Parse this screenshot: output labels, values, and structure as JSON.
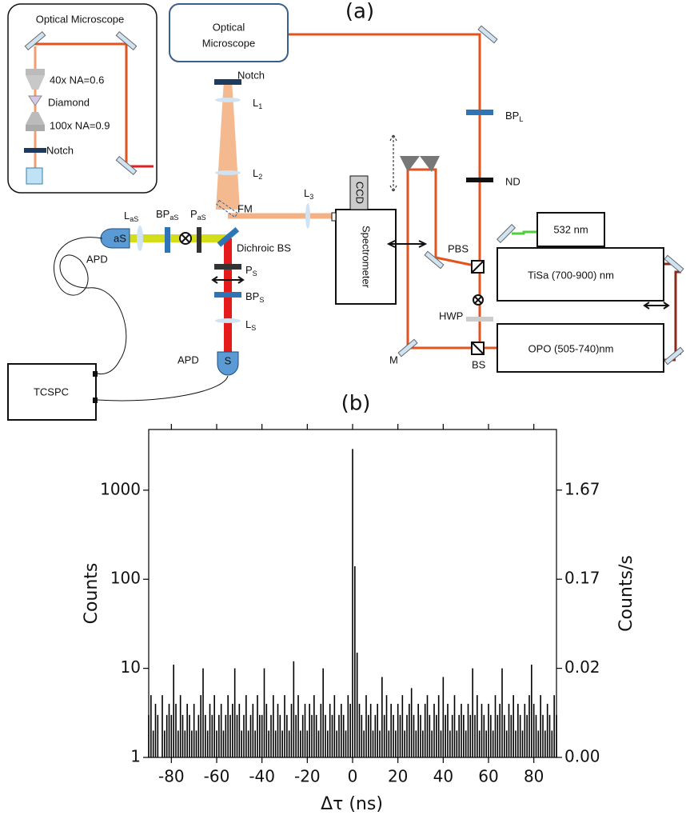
{
  "diagram": {
    "label": "(a)",
    "inset": {
      "title": "Optical Microscope",
      "objective_top": "40x NA=0.6",
      "sample": "Diamond",
      "objective_bottom": "100x NA=0.9",
      "filter": "Notch"
    },
    "microscope": [
      "Optical",
      "Microscope"
    ],
    "labels": {
      "notch": "Notch",
      "l1": {
        "text": "L",
        "sub": "1"
      },
      "l2": {
        "text": "L",
        "sub": "2"
      },
      "fm": "FM",
      "l3": {
        "text": "L",
        "sub": "3"
      },
      "ccd": "CCD",
      "spectrometer": "Spectrometer",
      "bpl": {
        "text": "BP",
        "sub": "L"
      },
      "nd": "ND",
      "laser532": "532 nm",
      "tisa": "TiSa (700-900) nm",
      "pbs": "PBS",
      "hwp": "HWP",
      "opo": "OPO (505-740)nm",
      "m": "M",
      "bs": "BS",
      "las": {
        "text": "L",
        "sub": "aS"
      },
      "bpas": {
        "text": "BP",
        "sub": "aS"
      },
      "pas": {
        "text": "P",
        "sub": "aS"
      },
      "as": "aS",
      "dichroic": "Dichroic BS",
      "apd_as": "APD",
      "ps": {
        "text": "P",
        "sub": "S"
      },
      "bps": {
        "text": "BP",
        "sub": "S"
      },
      "ls": {
        "text": "L",
        "sub": "S"
      },
      "apd_s": "APD",
      "s": "S",
      "tcspc": "TCSPC"
    }
  },
  "chart_data": {
    "type": "histogram",
    "title": "(b)",
    "x_label": "Δτ (ns)",
    "y_label": "Counts",
    "y2_label": "Counts/s",
    "log_y": true,
    "color": "#000000",
    "xlim": [
      -90,
      90
    ],
    "xticks": [
      -80,
      -60,
      -40,
      -20,
      0,
      20,
      40,
      60,
      80
    ],
    "ylim": [
      1,
      4800
    ],
    "yticks": [
      1,
      10,
      100,
      1000
    ],
    "y2lim": [
      0.00167,
      8
    ],
    "y2ticks": [
      {
        "value": 0.00167,
        "label": "0.00"
      },
      {
        "value": 0.0167,
        "label": "0.02"
      },
      {
        "value": 0.167,
        "label": "0.17"
      },
      {
        "value": 1.67,
        "label": "1.67"
      }
    ],
    "x": [
      -90,
      -89,
      -88,
      -87,
      -86,
      -85,
      -84,
      -83,
      -82,
      -81,
      -80,
      -79,
      -78,
      -77,
      -76,
      -75,
      -74,
      -73,
      -72,
      -71,
      -70,
      -69,
      -68,
      -67,
      -66,
      -65,
      -64,
      -63,
      -62,
      -61,
      -60,
      -59,
      -58,
      -57,
      -56,
      -55,
      -54,
      -53,
      -52,
      -51,
      -50,
      -49,
      -48,
      -47,
      -46,
      -45,
      -44,
      -43,
      -42,
      -41,
      -40,
      -39,
      -38,
      -37,
      -36,
      -35,
      -34,
      -33,
      -32,
      -31,
      -30,
      -29,
      -28,
      -27,
      -26,
      -25,
      -24,
      -23,
      -22,
      -21,
      -20,
      -19,
      -18,
      -17,
      -16,
      -15,
      -14,
      -13,
      -12,
      -11,
      -10,
      -9,
      -8,
      -7,
      -6,
      -5,
      -4,
      -3,
      -2,
      -1,
      0,
      1,
      2,
      3,
      4,
      5,
      6,
      7,
      8,
      9,
      10,
      11,
      12,
      13,
      14,
      15,
      16,
      17,
      18,
      19,
      20,
      21,
      22,
      23,
      24,
      25,
      26,
      27,
      28,
      29,
      30,
      31,
      32,
      33,
      34,
      35,
      36,
      37,
      38,
      39,
      40,
      41,
      42,
      43,
      44,
      45,
      46,
      47,
      48,
      49,
      50,
      51,
      52,
      53,
      54,
      55,
      56,
      57,
      58,
      59,
      60,
      61,
      62,
      63,
      64,
      65,
      66,
      67,
      68,
      69,
      70,
      71,
      72,
      73,
      74,
      75,
      76,
      77,
      78,
      79,
      80,
      81,
      82,
      83,
      84,
      85,
      86,
      87,
      88,
      89,
      90
    ],
    "values": [
      3,
      5,
      2,
      4,
      3,
      1,
      5,
      2,
      3,
      4,
      3,
      11,
      4,
      2,
      5,
      3,
      2,
      4,
      3,
      2,
      4,
      2,
      3,
      5,
      10,
      3,
      2,
      4,
      3,
      5,
      2,
      3,
      4,
      2,
      3,
      5,
      3,
      4,
      10,
      3,
      4,
      2,
      3,
      5,
      2,
      3,
      4,
      2,
      5,
      3,
      3,
      10,
      4,
      2,
      3,
      5,
      2,
      4,
      3,
      2,
      5,
      3,
      2,
      4,
      12,
      3,
      5,
      2,
      3,
      4,
      2,
      4,
      3,
      5,
      3,
      2,
      4,
      10,
      3,
      2,
      4,
      3,
      5,
      2,
      3,
      4,
      3,
      2,
      5,
      4,
      2900,
      140,
      15,
      4,
      3,
      2,
      5,
      3,
      4,
      2,
      3,
      4,
      2,
      8,
      3,
      5,
      2,
      4,
      3,
      2,
      4,
      3,
      5,
      2,
      3,
      4,
      6,
      3,
      2,
      4,
      3,
      2,
      4,
      5,
      3,
      2,
      4,
      3,
      5,
      2,
      8,
      3,
      4,
      2,
      3,
      5,
      2,
      3,
      4,
      3,
      2,
      4,
      3,
      10,
      3,
      5,
      2,
      4,
      3,
      2,
      4,
      3,
      2,
      5,
      3,
      4,
      10,
      3,
      2,
      4,
      3,
      5,
      2,
      4,
      3,
      2,
      4,
      3,
      5,
      11,
      4,
      3,
      2,
      5,
      3,
      2,
      4,
      3,
      2,
      5,
      3
    ]
  }
}
